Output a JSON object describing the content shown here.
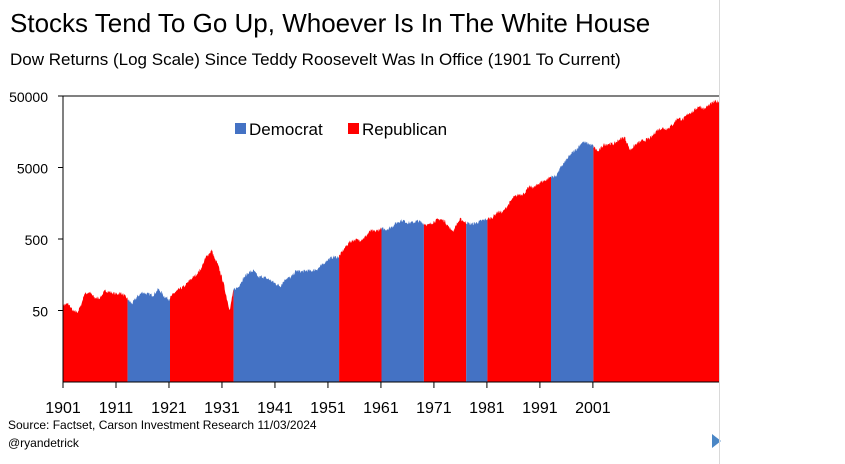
{
  "header": {
    "title": "Stocks Tend To Go Up, Whoever Is In The White House",
    "subtitle": "Dow Returns (Log Scale) Since Teddy Roosevelt Was In Office (1901 To Current)"
  },
  "footer": {
    "source": "Source: Factset, Carson Investment Research 11/03/2024",
    "handle": "@ryandetrick"
  },
  "colors": {
    "Democrat": "#4472c4",
    "Republican": "#ff0000",
    "axis": "#000000"
  },
  "chart_data": {
    "type": "area",
    "title": "Stocks Tend To Go Up, Whoever Is In The White House",
    "subtitle": "Dow Returns (Log Scale) Since Teddy Roosevelt Was In Office (1901 To Current)",
    "xlabel": "",
    "ylabel": "",
    "y_scale": "log",
    "ylim": [
      5,
      50000
    ],
    "xlim": [
      1901,
      2024.8
    ],
    "y_ticks": [
      50,
      500,
      5000,
      50000
    ],
    "y_tick_labels": [
      "50",
      "500",
      "5000",
      "50000"
    ],
    "x_ticks": [
      1901,
      1911,
      1921,
      1931,
      1941,
      1951,
      1961,
      1971,
      1981,
      1991,
      2001
    ],
    "x_tick_labels": [
      "1901",
      "1911",
      "1921",
      "1931",
      "1941",
      "1951",
      "1961",
      "1971",
      "1981",
      "1991",
      "2001"
    ],
    "legend": {
      "placement": "top-left",
      "entries": [
        "Democrat",
        "Republican"
      ]
    },
    "grid": false,
    "series": [
      {
        "x": [
          1901,
          1902,
          1903,
          1903.8,
          1904.5,
          1905,
          1906,
          1907,
          1907.9,
          1908.5,
          1909,
          1910,
          1911,
          1912,
          1913,
          1914,
          1915,
          1916,
          1917,
          1918,
          1919,
          1919.8,
          1920,
          1921,
          1922,
          1923,
          1924,
          1925,
          1926,
          1927,
          1928,
          1929.1,
          1929.7,
          1929.9,
          1930.3,
          1930.8,
          1931.3,
          1931.9,
          1932.5,
          1933,
          1933.3,
          1934,
          1935,
          1936,
          1937,
          1937.9,
          1938.5,
          1939,
          1940,
          1941,
          1942,
          1943,
          1944,
          1945,
          1946,
          1947,
          1948,
          1949,
          1950,
          1951,
          1952,
          1953,
          1954,
          1955,
          1956,
          1957,
          1958,
          1959,
          1960,
          1961,
          1962,
          1963,
          1964,
          1965,
          1966,
          1967,
          1968,
          1969,
          1970,
          1971,
          1972,
          1973,
          1974,
          1974.8,
          1975,
          1976,
          1977,
          1978,
          1979,
          1980,
          1981,
          1982,
          1983,
          1984,
          1985,
          1986,
          1987,
          1988,
          1989,
          1990,
          1991,
          1992,
          1993,
          1994,
          1995,
          1996,
          1997,
          1998,
          1999,
          2000,
          2001,
          2002,
          2003,
          2004,
          2005,
          2006,
          2007,
          2008,
          2009,
          2010,
          2011,
          2012,
          2013,
          2014,
          2015,
          2016,
          2017,
          2018,
          2019,
          2020,
          2021,
          2022,
          2023,
          2024,
          2024.8
        ],
        "values": [
          60,
          62,
          48,
          48,
          62,
          85,
          90,
          75,
          75,
          85,
          95,
          90,
          85,
          88,
          75,
          62,
          78,
          90,
          85,
          82,
          100,
          85,
          80,
          72,
          88,
          100,
          110,
          135,
          155,
          190,
          280,
          350,
          250,
          250,
          210,
          160,
          120,
          75,
          50,
          85,
          100,
          105,
          140,
          170,
          180,
          145,
          150,
          145,
          135,
          120,
          110,
          140,
          145,
          180,
          175,
          180,
          180,
          190,
          220,
          260,
          280,
          280,
          360,
          450,
          490,
          480,
          530,
          650,
          640,
          700,
          680,
          740,
          850,
          920,
          850,
          850,
          900,
          830,
          780,
          880,
          950,
          900,
          700,
          650,
          750,
          950,
          850,
          810,
          840,
          900,
          950,
          1000,
          1200,
          1190,
          1500,
          1900,
          2100,
          2150,
          2700,
          2650,
          3100,
          3300,
          3700,
          3800,
          5100,
          6400,
          7900,
          9200,
          11400,
          10900,
          10100,
          8300,
          10400,
          10800,
          10700,
          12400,
          13300,
          8800,
          10400,
          11600,
          12200,
          13100,
          16500,
          17800,
          17400,
          19700,
          24700,
          23300,
          28500,
          30600,
          36300,
          33100,
          37700,
          42000,
          42000
        ]
      }
    ],
    "party_periods": [
      {
        "start": 1901,
        "end": 1913.2,
        "party": "Republican"
      },
      {
        "start": 1913.2,
        "end": 1921.2,
        "party": "Democrat"
      },
      {
        "start": 1921.2,
        "end": 1933.2,
        "party": "Republican"
      },
      {
        "start": 1933.2,
        "end": 1953.1,
        "party": "Democrat"
      },
      {
        "start": 1953.1,
        "end": 1961.1,
        "party": "Republican"
      },
      {
        "start": 1961.1,
        "end": 1969.1,
        "party": "Democrat"
      },
      {
        "start": 1969.1,
        "end": 1977.1,
        "party": "Republican"
      },
      {
        "start": 1977.1,
        "end": 1981.1,
        "party": "Democrat"
      },
      {
        "start": 1981.1,
        "end": 1993.1,
        "party": "Republican"
      },
      {
        "start": 1993.1,
        "end": 2001.1,
        "party": "Democrat"
      },
      {
        "start": 2001.1,
        "end": 2024.8,
        "party": "Republican"
      }
    ]
  }
}
